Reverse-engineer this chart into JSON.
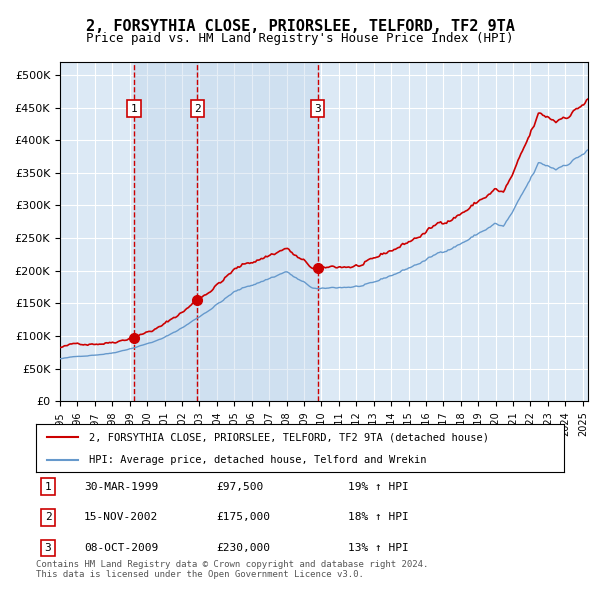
{
  "title": "2, FORSYTHIA CLOSE, PRIORSLEE, TELFORD, TF2 9TA",
  "subtitle": "Price paid vs. HM Land Registry's House Price Index (HPI)",
  "title_fontsize": 11,
  "subtitle_fontsize": 9,
  "ylim": [
    0,
    520000
  ],
  "yticks": [
    0,
    50000,
    100000,
    150000,
    200000,
    250000,
    300000,
    350000,
    400000,
    450000,
    500000
  ],
  "xlim_start": 1995.0,
  "xlim_end": 2025.3,
  "background_color": "#ffffff",
  "plot_bg_color": "#dce9f5",
  "grid_color": "#ffffff",
  "purchases": [
    {
      "year_dec": 1999.24,
      "price": 97500,
      "label": "1"
    },
    {
      "year_dec": 2002.88,
      "price": 175000,
      "label": "2"
    },
    {
      "year_dec": 2009.78,
      "price": 230000,
      "label": "3"
    }
  ],
  "purchase_marker_color": "#cc0000",
  "hpi_line_color": "#6699cc",
  "price_line_color": "#cc0000",
  "vline_color": "#cc0000",
  "shade_color": "#b8d0e8",
  "legend_label_price": "2, FORSYTHIA CLOSE, PRIORSLEE, TELFORD, TF2 9TA (detached house)",
  "legend_label_hpi": "HPI: Average price, detached house, Telford and Wrekin",
  "footer_text": "Contains HM Land Registry data © Crown copyright and database right 2024.\nThis data is licensed under the Open Government Licence v3.0.",
  "table_rows": [
    {
      "label": "1",
      "date": "30-MAR-1999",
      "price": "£97,500",
      "info": "19% ↑ HPI"
    },
    {
      "label": "2",
      "date": "15-NOV-2002",
      "price": "£175,000",
      "info": "18% ↑ HPI"
    },
    {
      "label": "3",
      "date": "08-OCT-2009",
      "price": "£230,000",
      "info": "13% ↑ HPI"
    }
  ]
}
